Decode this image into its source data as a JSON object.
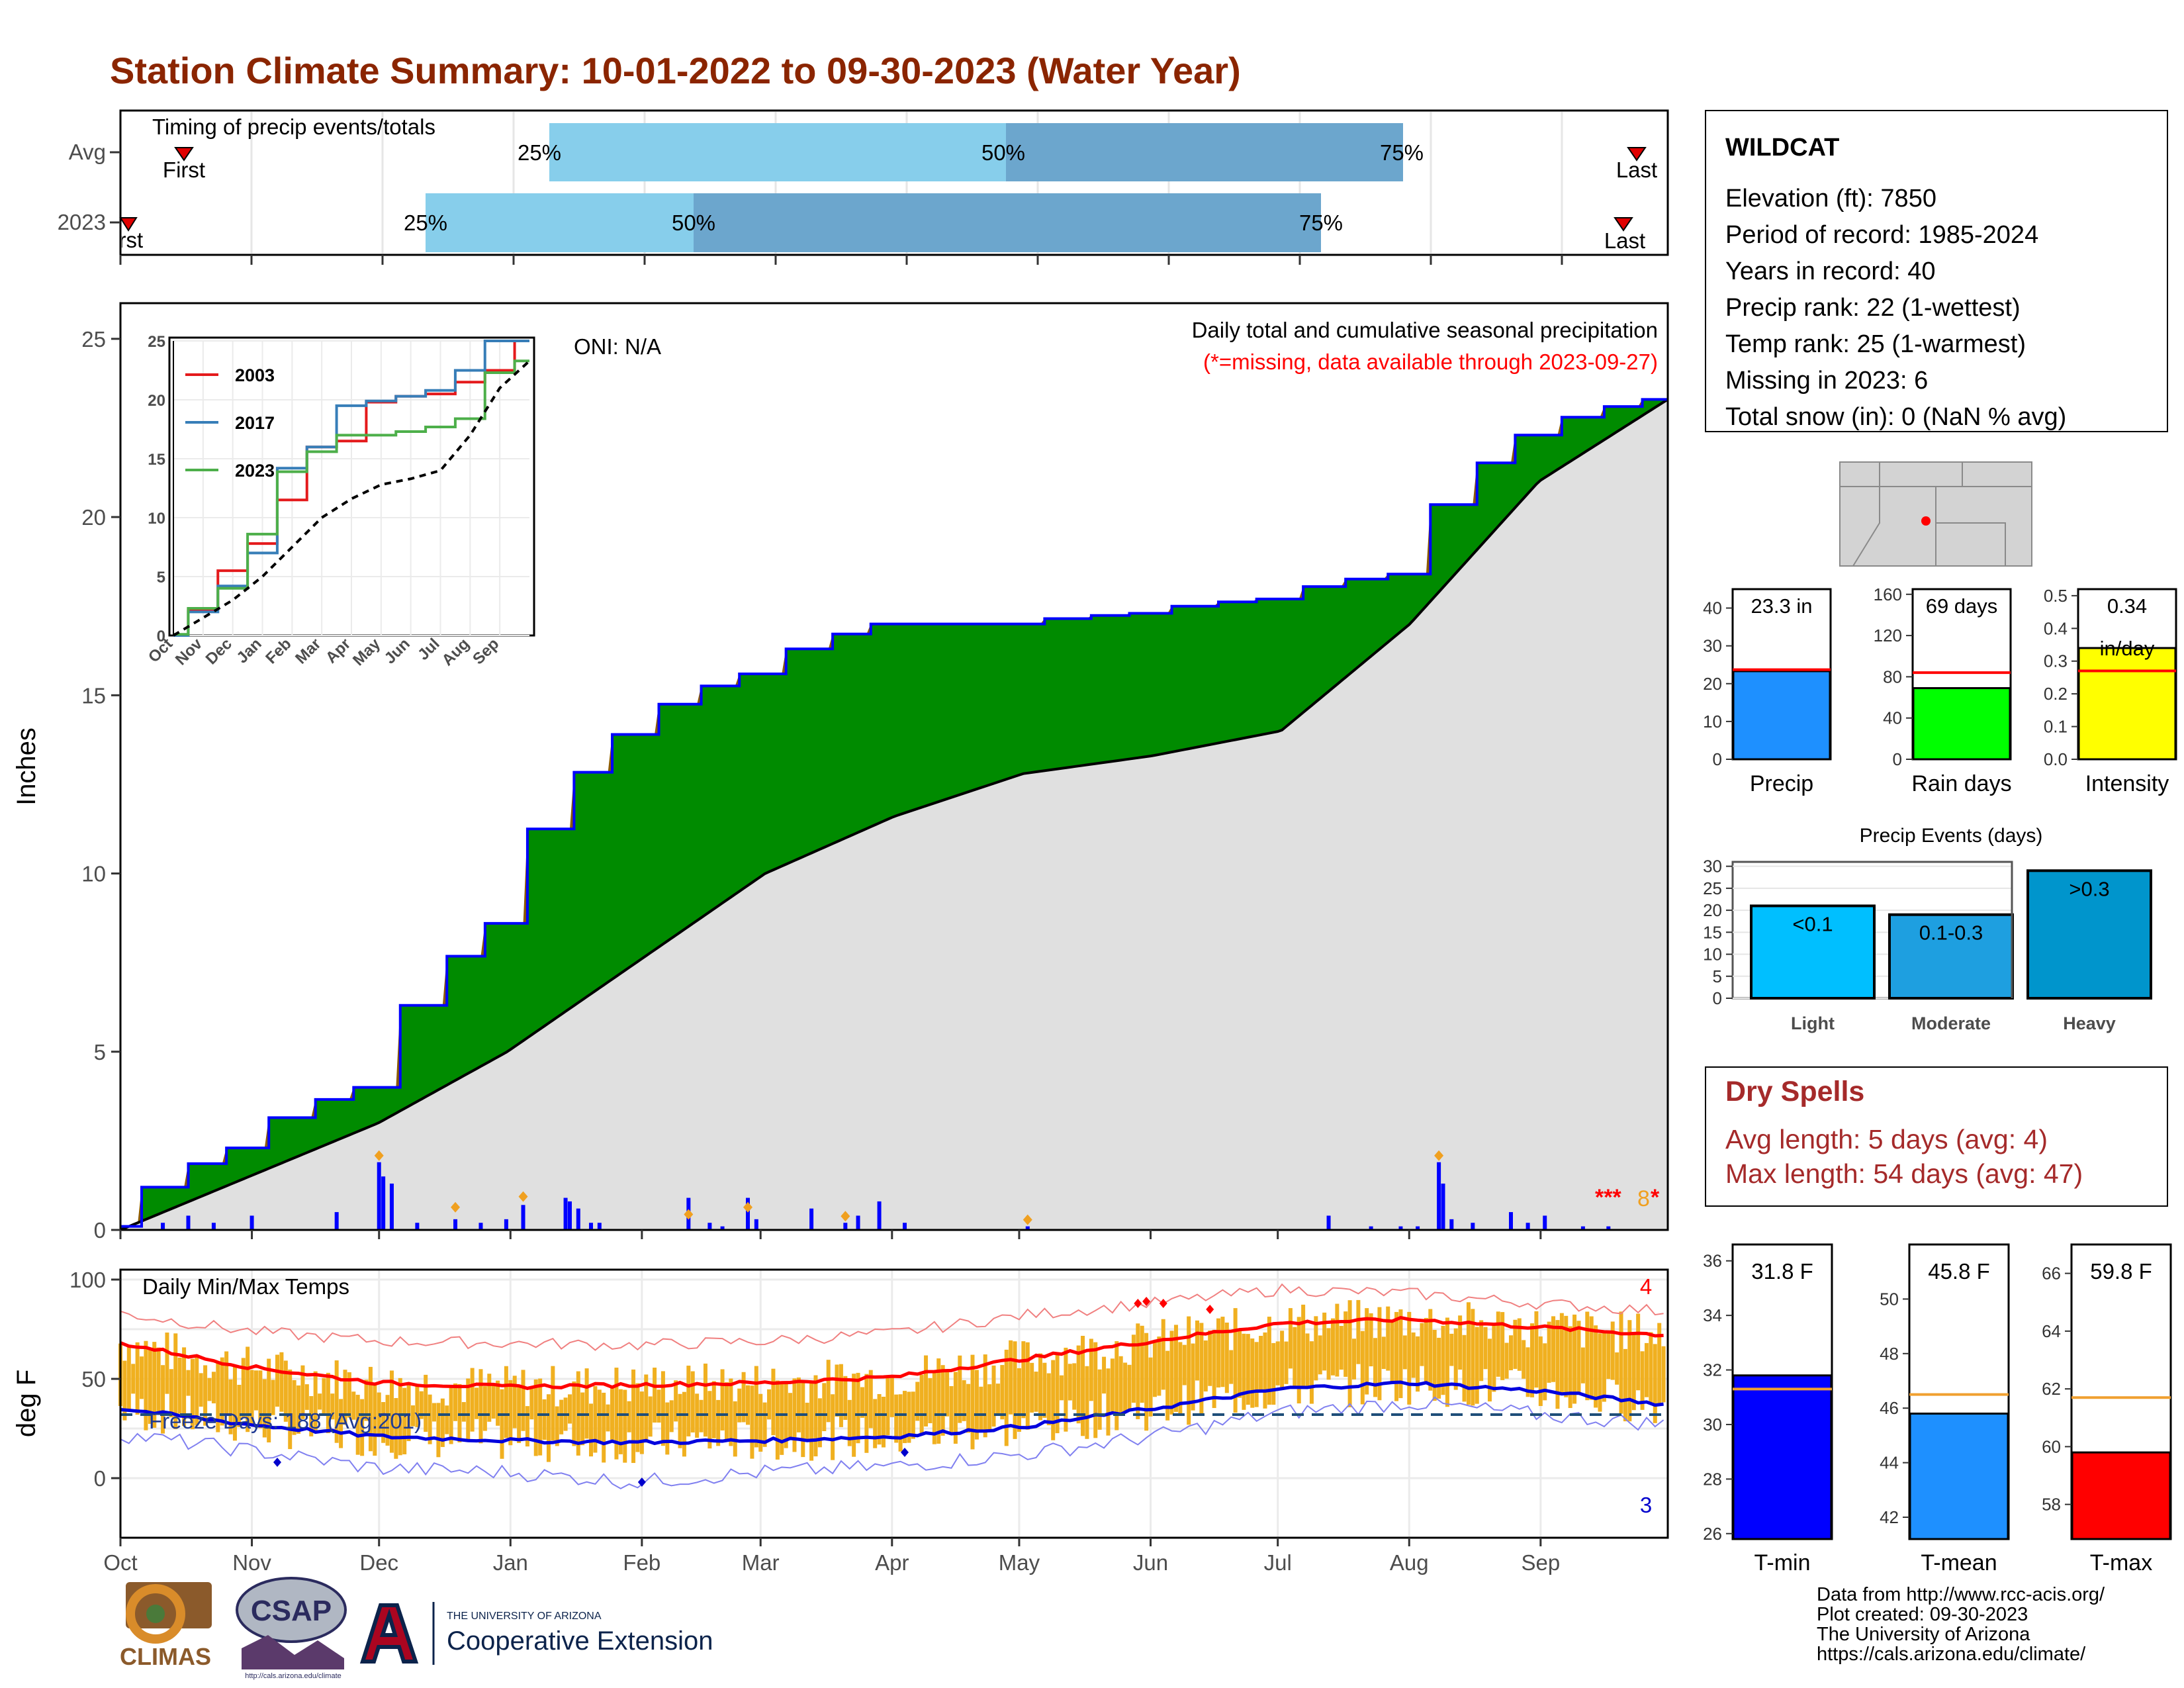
{
  "title": "Station Climate Summary: 10-01-2022 to 09-30-2023 (Water Year)",
  "colors": {
    "title": "#8B2500",
    "accent_red": "#A52A2A",
    "precip_fill": "#008B00",
    "deficit_fill": "#8B5A00",
    "avg_fill": "#E0E0E0",
    "daily_bar": "#0000FF",
    "temp_bar": "#F0B020",
    "tmax_line": "#FF0000",
    "tmin_line": "#0000DD"
  },
  "timing_panel": {
    "label": "Timing of precip events/totals",
    "rows": [
      "Avg",
      "2023"
    ],
    "avg": {
      "first_label": "First",
      "last_label": "Last",
      "q25": "25%",
      "q50": "50%",
      "q75": "75%"
    },
    "year": {
      "first_label": "First",
      "last_label": "Last",
      "q25": "25%",
      "q50": "50%",
      "q75": "75%"
    }
  },
  "station_info": {
    "name": "WILDCAT",
    "elevation": "Elevation (ft): 7850",
    "period": "Period of record: 1985-2024",
    "years": "Years in record: 40",
    "precip_rank": "Precip rank: 22 (1-wettest)",
    "temp_rank": "Temp rank: 25 (1-warmest)",
    "missing": "Missing in 2023: 6",
    "snow": "Total snow (in): 0 (NaN % avg)"
  },
  "precip_chart": {
    "ylabel": "Inches",
    "yticks": [
      "0",
      "5",
      "10",
      "15",
      "20",
      "25"
    ],
    "oni": "ONI: N/A",
    "subtitle": "Daily total and cumulative seasonal precipitation",
    "missing_note": "(*=missing, data available through 2023-09-27)",
    "missing_marker": "***",
    "missing_count": "8",
    "end_marker": "*"
  },
  "month_labels": [
    "Oct",
    "Nov",
    "Dec",
    "Jan",
    "Feb",
    "Mar",
    "Apr",
    "May",
    "Jun",
    "Jul",
    "Aug",
    "Sep"
  ],
  "inset": {
    "yticks": [
      "0",
      "5",
      "10",
      "15",
      "20",
      "25"
    ],
    "months": [
      "Oct",
      "Nov",
      "Dec",
      "Jan",
      "Feb",
      "Mar",
      "Apr",
      "May",
      "Jun",
      "Jul",
      "Aug",
      "Sep"
    ],
    "legend": [
      "2003",
      "2017",
      "2023"
    ]
  },
  "mini_bars": [
    {
      "label": "Precip",
      "value_text": "23.3 in",
      "value_text2": "",
      "yticks": [
        "0",
        "10",
        "20",
        "30",
        "40"
      ]
    },
    {
      "label": "Rain days",
      "value_text": "69 days",
      "value_text2": "",
      "yticks": [
        "0",
        "40",
        "80",
        "120",
        "160"
      ]
    },
    {
      "label": "Intensity",
      "value_text": "0.34",
      "value_text2": "in/day",
      "yticks": [
        "0.0",
        "0.1",
        "0.2",
        "0.3",
        "0.4",
        "0.5"
      ]
    }
  ],
  "events": {
    "title": "Precip Events (days)",
    "yticks": [
      "0",
      "5",
      "10",
      "15",
      "20",
      "25",
      "30"
    ],
    "bars": [
      {
        "label": "Light",
        "tag": "<0.1"
      },
      {
        "label": "Moderate",
        "tag": "0.1-0.3"
      },
      {
        "label": "Heavy",
        "tag": ">0.3"
      }
    ]
  },
  "dry_spells": {
    "title": "Dry Spells",
    "avg": "Avg length: 5 days (avg: 4)",
    "max": "Max length: 54 days (avg: 47)"
  },
  "temp_chart": {
    "ylabel": "deg F",
    "label": "Daily Min/Max Temps",
    "yticks": [
      "0",
      "50",
      "100"
    ],
    "freeze": "Freeze Days: 188 (Avg:201)",
    "record_high_count": "4",
    "record_low_count": "3"
  },
  "temp_bars": [
    {
      "label": "T-min",
      "value_text": "31.8 F",
      "yticks": [
        "26",
        "28",
        "30",
        "32",
        "34",
        "36"
      ]
    },
    {
      "label": "T-mean",
      "value_text": "45.8 F",
      "yticks": [
        "42",
        "44",
        "46",
        "48",
        "50"
      ]
    },
    {
      "label": "T-max",
      "value_text": "59.8 F",
      "yticks": [
        "58",
        "60",
        "62",
        "64",
        "66"
      ]
    }
  ],
  "footer": {
    "line1": "Data from http://www.rcc-acis.org/",
    "line2": "Plot created: 09-30-2023",
    "line3": "The University of Arizona",
    "line4": "https://cals.arizona.edu/climate/"
  },
  "logos": {
    "climas": "CLIMAS",
    "csap": "CSAP",
    "csap_url": "http://cals.arizona.edu/climate",
    "ua_top": "THE UNIVERSITY OF ARIZONA",
    "ua_bottom": "Cooperative Extension"
  },
  "chart_data": [
    {
      "type": "area",
      "title": "Daily total and cumulative seasonal precipitation",
      "ylabel": "Inches",
      "ylim": [
        0,
        26
      ],
      "x": [
        "Oct",
        "Nov",
        "Dec",
        "Jan",
        "Feb",
        "Mar",
        "Apr",
        "May",
        "Jun",
        "Jul",
        "Aug",
        "Sep",
        "end"
      ],
      "series": [
        {
          "name": "2023",
          "values": [
            0.1,
            2.3,
            4.0,
            8.6,
            13.9,
            15.6,
            17.0,
            17.0,
            17.3,
            17.7,
            18.4,
            22.3,
            23.3
          ]
        },
        {
          "name": "",
          "values": [
            0.0,
            1.5,
            3.0,
            5.0,
            7.5,
            10.0,
            11.6,
            12.8,
            13.3,
            14.0,
            17.0,
            21.0,
            23.3
          ]
        }
      ],
      "daily_events": [
        [
          10,
          0.2
        ],
        [
          16,
          0.4
        ],
        [
          22,
          0.2
        ],
        [
          31,
          0.4
        ],
        [
          51,
          0.5
        ],
        [
          61,
          1.9
        ],
        [
          62,
          1.5
        ],
        [
          64,
          1.3
        ],
        [
          70,
          0.2
        ],
        [
          79,
          0.3
        ],
        [
          85,
          0.2
        ],
        [
          91,
          0.3
        ],
        [
          95,
          0.7
        ],
        [
          105,
          0.9
        ],
        [
          106,
          0.8
        ],
        [
          108,
          0.6
        ],
        [
          111,
          0.2
        ],
        [
          113,
          0.2
        ],
        [
          134,
          0.9
        ],
        [
          139,
          0.2
        ],
        [
          142,
          0.1
        ],
        [
          148,
          0.9
        ],
        [
          150,
          0.3
        ],
        [
          163,
          0.6
        ],
        [
          171,
          0.2
        ],
        [
          174,
          0.4
        ],
        [
          179,
          0.8
        ],
        [
          185,
          0.2
        ],
        [
          214,
          0.1
        ],
        [
          285,
          0.4
        ],
        [
          295,
          0.1
        ],
        [
          302,
          0.1
        ],
        [
          306,
          0.1
        ],
        [
          311,
          1.9
        ],
        [
          312,
          1.3
        ],
        [
          314,
          0.3
        ],
        [
          319,
          0.2
        ],
        [
          328,
          0.5
        ],
        [
          332,
          0.2
        ],
        [
          336,
          0.4
        ],
        [
          345,
          0.1
        ],
        [
          351,
          0.1
        ]
      ]
    },
    {
      "type": "line",
      "title": "",
      "ylim": [
        0,
        25
      ],
      "x": [
        "Oct",
        "Nov",
        "Dec",
        "Jan",
        "Feb",
        "Mar",
        "Apr",
        "May",
        "Jun",
        "Jul",
        "Aug",
        "Sep",
        "end"
      ],
      "series": [
        {
          "name": "2003",
          "values": [
            0,
            2.2,
            5.5,
            7.8,
            11.5,
            16.0,
            16.5,
            19.8,
            20.3,
            20.5,
            21.5,
            22.5,
            25.5
          ]
        },
        {
          "name": "2017",
          "values": [
            0,
            2.0,
            4.2,
            7.0,
            14.2,
            16.0,
            19.5,
            19.9,
            20.3,
            20.8,
            22.5,
            25.0,
            25.0
          ]
        },
        {
          "name": "2023",
          "values": [
            0.1,
            2.3,
            4.0,
            8.6,
            13.9,
            15.6,
            17.0,
            17.0,
            17.3,
            17.7,
            18.4,
            22.3,
            23.3
          ]
        },
        {
          "name": "",
          "values": [
            0,
            1.5,
            3.0,
            5.0,
            7.5,
            10.0,
            11.6,
            12.8,
            13.3,
            14.0,
            17.0,
            21.0,
            23.3
          ]
        }
      ]
    },
    {
      "type": "bar",
      "title": "",
      "categories": [
        "Precip",
        "Rain days",
        "Intensity"
      ],
      "values": [
        23.3,
        69,
        0.34
      ],
      "averages": [
        23.7,
        84,
        0.27
      ],
      "ylims": [
        [
          0,
          45
        ],
        [
          0,
          165
        ],
        [
          0,
          0.52
        ]
      ]
    },
    {
      "type": "bar",
      "title": "Precip Events (days)",
      "categories": [
        "Light",
        "Moderate",
        "Heavy"
      ],
      "values": [
        21,
        19,
        29
      ],
      "ylim": [
        0,
        31
      ]
    },
    {
      "type": "line",
      "title": "Daily Min/Max Temps",
      "ylabel": "deg F",
      "ylim": [
        -30,
        105
      ],
      "x": [
        "Oct",
        "Nov",
        "Dec",
        "Jan",
        "Feb",
        "Mar",
        "Apr",
        "May",
        "Jun",
        "Jul",
        "Aug",
        "Sep",
        "end"
      ],
      "series": [
        {
          "name": "",
          "values": [
            68,
            56,
            48,
            46,
            47,
            48,
            51,
            60,
            69,
            78,
            80,
            76,
            72
          ]
        },
        {
          "name": "",
          "values": [
            35,
            27,
            21,
            19,
            18,
            19,
            21,
            26,
            35,
            45,
            48,
            44,
            37
          ]
        },
        {
          "name": "",
          "values": [
            83,
            74,
            69,
            68,
            67,
            69,
            73,
            82,
            88,
            95,
            93,
            88,
            84
          ]
        },
        {
          "name": "",
          "values": [
            22,
            14,
            5,
            3,
            -2,
            3,
            6,
            12,
            21,
            33,
            38,
            32,
            27
          ]
        }
      ],
      "freeze_threshold": 32
    },
    {
      "type": "bar",
      "title": "",
      "categories": [
        "T-min",
        "T-mean",
        "T-max"
      ],
      "values": [
        31.8,
        45.8,
        59.8
      ],
      "averages": [
        31.3,
        46.5,
        61.7
      ],
      "ylims": [
        [
          25.8,
          36.6
        ],
        [
          41.2,
          52
        ],
        [
          56.8,
          67
        ]
      ]
    }
  ]
}
